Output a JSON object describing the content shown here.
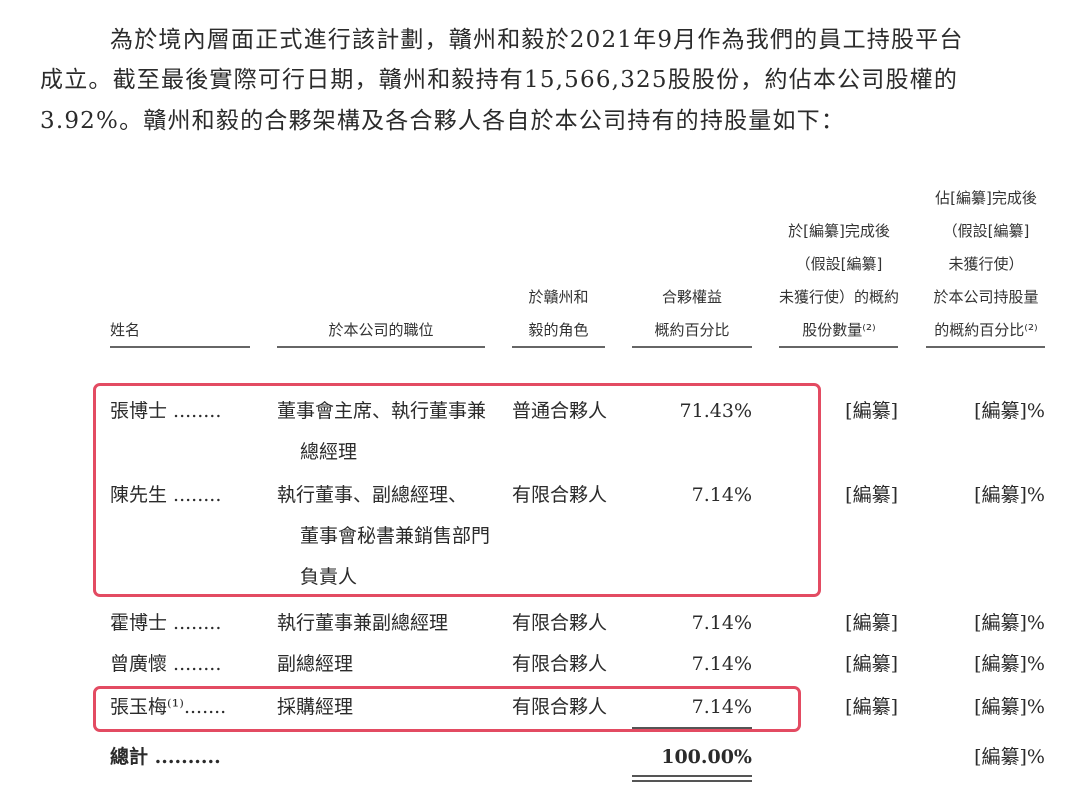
{
  "paragraph": {
    "lines": [
      "為於境內層面正式進行該計劃，贛州和毅於2021年9月作為我們的員工持股平台",
      "成立。截至最後實際可行日期，贛州和毅持有15,566,325股股份，約佔本公司股權的",
      "3.92%。贛州和毅的合夥架構及各合夥人各自於本公司持有的持股量如下："
    ]
  },
  "table": {
    "headers": {
      "name": [
        "姓名"
      ],
      "position": [
        "於本公司的職位"
      ],
      "role": [
        "於贛州和",
        "毅的角色"
      ],
      "interest": [
        "合夥權益",
        "概約百分比"
      ],
      "shares": [
        "於[編纂]完成後",
        "（假設[編纂]",
        "未獲行使）的概約",
        "股份數量⁽²⁾"
      ],
      "holding": [
        "佔[編纂]完成後",
        "（假設[編纂]",
        "未獲行使）",
        "於本公司持股量",
        "的概約百分比⁽²⁾"
      ]
    },
    "rows": [
      {
        "name": "張博士 ........",
        "position": [
          "董事會主席、執行董事兼",
          "總經理"
        ],
        "role": "普通合夥人",
        "interest": "71.43%",
        "shares": "[編纂]",
        "holding": "[編纂]%"
      },
      {
        "name": "陳先生 ........",
        "position": [
          "執行董事、副總經理、",
          "董事會秘書兼銷售部門",
          "負責人"
        ],
        "role": "有限合夥人",
        "interest": "7.14%",
        "shares": "[編纂]",
        "holding": "[編纂]%"
      },
      {
        "name": "霍博士 ........",
        "position": [
          "執行董事兼副總經理"
        ],
        "role": "有限合夥人",
        "interest": "7.14%",
        "shares": "[編纂]",
        "holding": "[編纂]%"
      },
      {
        "name": "曾廣懷 ........",
        "position": [
          "副總經理"
        ],
        "role": "有限合夥人",
        "interest": "7.14%",
        "shares": "[編纂]",
        "holding": "[編纂]%"
      },
      {
        "name": "張玉梅⁽¹⁾.......",
        "position": [
          "採購經理"
        ],
        "role": "有限合夥人",
        "interest": "7.14%",
        "shares": "[編纂]",
        "holding": "[編纂]%"
      }
    ],
    "total": {
      "name": "總計 ..........",
      "interest": "100.00%",
      "holding": "[編纂]%"
    }
  },
  "highlight_color": "#e34b62"
}
